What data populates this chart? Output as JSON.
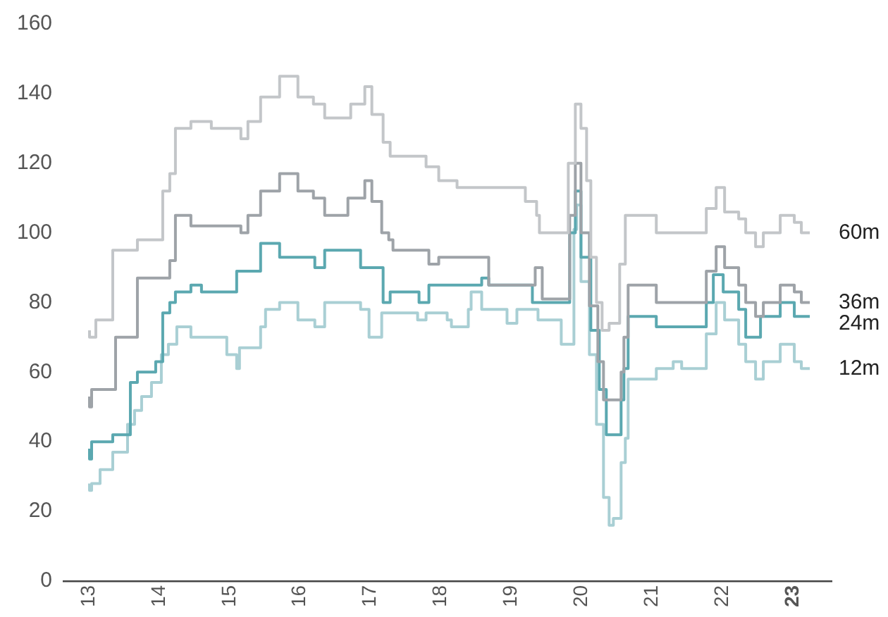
{
  "chart_data": {
    "type": "step",
    "xlim": [
      12.64,
      23.55
    ],
    "xticks": [
      13,
      14,
      15,
      16,
      17,
      18,
      19,
      20,
      21,
      22,
      23
    ],
    "ylim": [
      0,
      160
    ],
    "yticks": [
      0,
      20,
      40,
      60,
      80,
      100,
      120,
      140,
      160
    ],
    "grid": false,
    "series": [
      {
        "name": "60m",
        "color": "#c3c6c9",
        "x": [
          13.01,
          13.1,
          13.34,
          13.69,
          14.05,
          14.15,
          14.23,
          14.45,
          14.74,
          15.16,
          15.26,
          15.44,
          15.71,
          15.97,
          16.19,
          16.35,
          16.72,
          16.92,
          17.02,
          17.18,
          17.28,
          17.79,
          17.97,
          18.23,
          19.2,
          19.36,
          19.4,
          19.81,
          19.91,
          19.99,
          20.07,
          20.13,
          20.21,
          20.29,
          20.39,
          20.54,
          20.62,
          21.06,
          21.77,
          21.91,
          22.03,
          22.23,
          22.33,
          22.47,
          22.58,
          22.82,
          23.02,
          23.12,
          23.22,
          23.24
        ],
        "values": [
          72,
          70,
          75,
          95,
          98,
          112,
          117,
          130,
          132,
          130,
          127,
          132,
          139,
          145,
          139,
          137,
          133,
          137,
          142,
          134,
          126,
          122,
          119,
          115,
          113,
          109,
          105,
          100,
          120,
          137,
          130,
          115,
          93,
          80,
          72,
          74,
          91,
          105,
          100,
          107,
          113,
          106,
          104,
          100,
          96,
          100,
          105,
          103,
          100,
          100
        ]
      },
      {
        "name": "36m",
        "color": "#9ea3a8",
        "x": [
          13.01,
          13.04,
          13.38,
          13.69,
          14.15,
          14.23,
          14.45,
          15.16,
          15.26,
          15.44,
          15.71,
          15.97,
          16.19,
          16.35,
          16.68,
          16.92,
          17.02,
          17.16,
          17.26,
          17.32,
          17.83,
          17.97,
          18.68,
          19.34,
          19.44,
          19.83,
          19.91,
          19.99,
          20.11,
          20.23,
          20.31,
          20.41,
          20.56,
          20.6,
          20.66,
          21.06,
          21.77,
          21.91,
          22.03,
          22.23,
          22.33,
          22.47,
          22.58,
          22.82,
          23.02,
          23.12,
          23.22,
          23.24
        ],
        "values": [
          53,
          50,
          55,
          70,
          87,
          92,
          105,
          102,
          100,
          105,
          112,
          117,
          112,
          110,
          105,
          110,
          115,
          109,
          100,
          98,
          95,
          91,
          93,
          85,
          90,
          81,
          105,
          120,
          100,
          79,
          63,
          52,
          52,
          60,
          70,
          85,
          80,
          89,
          96,
          90,
          85,
          80,
          76,
          80,
          85,
          83,
          80,
          80
        ]
      },
      {
        "name": "24m",
        "color": "#5ba8b0",
        "x": [
          13.01,
          13.04,
          13.34,
          13.59,
          13.69,
          13.95,
          14.05,
          14.15,
          14.23,
          14.45,
          14.6,
          15.1,
          15.44,
          15.71,
          16.21,
          16.35,
          16.86,
          17.18,
          17.28,
          17.69,
          17.83,
          18.58,
          18.68,
          19.3,
          19.83,
          19.91,
          19.99,
          20.13,
          20.25,
          20.35,
          20.41,
          20.56,
          20.6,
          20.66,
          21.06,
          21.77,
          21.87,
          22.01,
          22.23,
          22.33,
          22.54,
          22.82,
          23.02,
          23.16,
          23.24
        ],
        "values": [
          38,
          35,
          40,
          42,
          57,
          60,
          63,
          77,
          80,
          83,
          85,
          83,
          89,
          97,
          93,
          90,
          95,
          90,
          80,
          83,
          80,
          85,
          87,
          85,
          80,
          100,
          112,
          93,
          72,
          55,
          42,
          42,
          52,
          61,
          76,
          73,
          80,
          88,
          83,
          78,
          70,
          76,
          80,
          76,
          76
        ]
      },
      {
        "name": "12m",
        "color": "#a9cfd4",
        "x": [
          13.01,
          13.04,
          13.16,
          13.34,
          13.55,
          13.65,
          13.75,
          13.89,
          14.03,
          14.13,
          14.25,
          14.45,
          14.96,
          15.1,
          15.14,
          15.44,
          15.51,
          15.71,
          15.97,
          16.21,
          16.35,
          16.86,
          16.98,
          17.16,
          17.67,
          17.79,
          18.09,
          18.15,
          18.39,
          18.43,
          18.58,
          18.94,
          19.08,
          19.38,
          19.71,
          19.89,
          19.93,
          19.99,
          20.11,
          20.21,
          20.31,
          20.39,
          20.45,
          20.56,
          20.62,
          20.66,
          21.06,
          21.3,
          21.42,
          21.77,
          21.91,
          22.03,
          22.23,
          22.33,
          22.47,
          22.58,
          22.82,
          23.02,
          23.12,
          23.22,
          23.24
        ],
        "values": [
          28,
          26,
          28,
          32,
          37,
          45,
          49,
          53,
          57,
          65,
          68,
          73,
          70,
          65,
          61,
          67,
          73,
          78,
          80,
          75,
          73,
          80,
          78,
          70,
          77,
          75,
          77,
          75,
          73,
          78,
          83,
          78,
          74,
          78,
          75,
          68,
          101,
          108,
          86,
          65,
          45,
          24,
          16,
          18,
          34,
          41,
          58,
          61,
          63,
          61,
          71,
          80,
          75,
          68,
          63,
          58,
          63,
          68,
          63,
          61,
          61
        ]
      }
    ]
  }
}
